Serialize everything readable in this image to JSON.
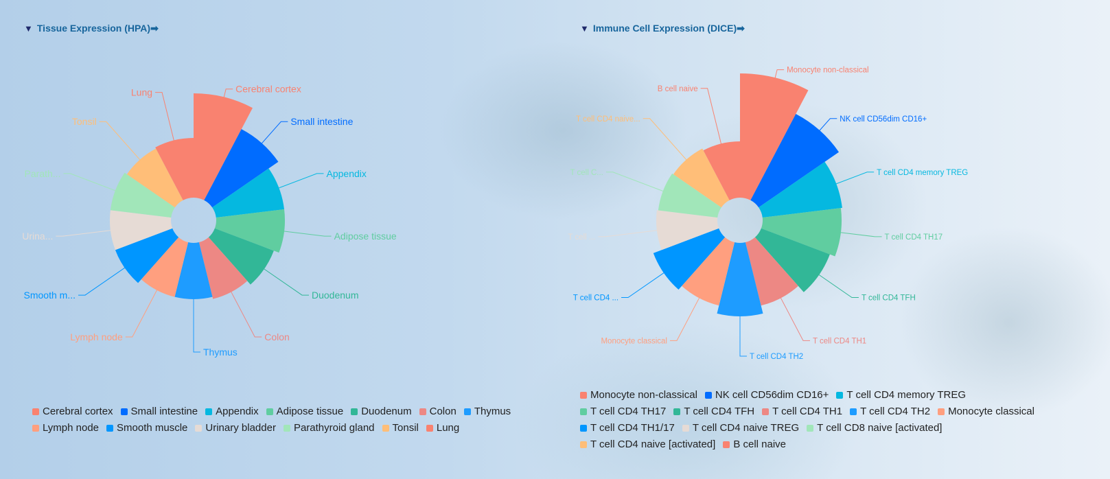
{
  "chart_data": [
    {
      "type": "rose-pie",
      "title": "Tissue Expression (HPA)",
      "title_prefix": "▼",
      "title_suffix": "➡",
      "categories": [
        "Cerebral cortex",
        "Small intestine",
        "Appendix",
        "Adipose tissue",
        "Duodenum",
        "Colon",
        "Thymus",
        "Lymph node",
        "Smooth muscle",
        "Urinary bladder",
        "Parathyroid gland",
        "Tonsil",
        "Lung"
      ],
      "slice_labels": [
        "Cerebral cortex",
        "Small intestine",
        "Appendix",
        "Adipose tissue",
        "Duodenum",
        "Colon",
        "Thymus",
        "Lymph node",
        "Smooth m...",
        "Urina...",
        "Parath...",
        "Tonsil",
        "Lung"
      ],
      "values": [
        152,
        117,
        100,
        100,
        92,
        85,
        82,
        82,
        89,
        89,
        89,
        85,
        87
      ],
      "colors": [
        "#f98270",
        "#006cff",
        "#05b8e0",
        "#60cda0",
        "#32b797",
        "#ed8884",
        "#1e9cff",
        "#ff9f7f",
        "#0096ff",
        "#e6dbd5",
        "#a1e6b9",
        "#ffbe78",
        "#f98270"
      ],
      "legend_position": "bottom-left"
    },
    {
      "type": "rose-pie",
      "title": "Immune Cell Expression (DICE)",
      "title_prefix": "▼",
      "title_suffix": "➡",
      "categories": [
        "Monocyte non-classical",
        "NK cell CD56dim CD16+",
        "T cell CD4 memory TREG",
        "T cell CD4 TH17",
        "T cell CD4 TFH",
        "T cell CD4 TH1",
        "T cell CD4 TH2",
        "Monocyte classical",
        "T cell CD4 TH1/17",
        "T cell CD4 naive TREG",
        "T cell CD8 naive [activated]",
        "T cell CD4 naive [activated]",
        "B cell naive"
      ],
      "slice_labels": [
        "Monocyte non-classical",
        "NK cell CD56dim CD16+",
        "T cell CD4 memory TREG",
        "T cell CD4 TH17",
        "T cell CD4 TFH",
        "T cell CD4 TH1",
        "T cell CD4 TH2",
        "Monocyte classical",
        "T cell CD4 ...",
        "T cell ...",
        "T cell C...",
        "T cell CD4 naive...",
        "B cell naive"
      ],
      "values": [
        181,
        142,
        117,
        115,
        107,
        95,
        107,
        95,
        102,
        89,
        87,
        85,
        82
      ],
      "colors": [
        "#f98270",
        "#006cff",
        "#05b8e0",
        "#60cda0",
        "#32b797",
        "#ed8884",
        "#1e9cff",
        "#ff9f7f",
        "#0096ff",
        "#e6dbd5",
        "#a1e6b9",
        "#ffbe78",
        "#f98270"
      ],
      "legend_position": "bottom-left"
    }
  ]
}
